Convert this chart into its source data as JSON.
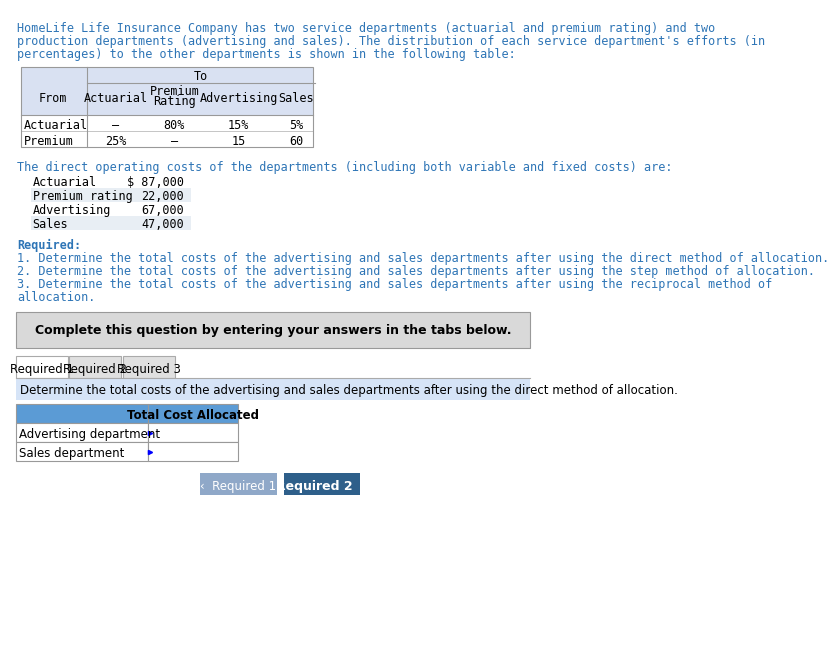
{
  "intro_lines": [
    "HomeLife Life Insurance Company has two service departments (actuarial and premium rating) and two",
    "production departments (advertising and sales). The distribution of each service department's efforts (in",
    "percentages) to the other departments is shown in the following table:"
  ],
  "table1_rows": [
    [
      "Actuarial",
      "–",
      "80%",
      "15%",
      "5%"
    ],
    [
      "Premium",
      "25%",
      "–",
      "15",
      "60"
    ]
  ],
  "costs_intro": "The direct operating costs of the departments (including both variable and fixed costs) are:",
  "costs_rows": [
    [
      "Actuarial",
      "$ 87,000"
    ],
    [
      "Premium rating",
      "22,000"
    ],
    [
      "Advertising",
      "67,000"
    ],
    [
      "Sales",
      "47,000"
    ]
  ],
  "required_label": "Required:",
  "required_items": [
    "1. Determine the total costs of the advertising and sales departments after using the direct method of allocation.",
    "2. Determine the total costs of the advertising and sales departments after using the step method of allocation.",
    "3. Determine the total costs of the advertising and sales departments after using the reciprocal method of",
    "allocation."
  ],
  "complete_text": "Complete this question by entering your answers in the tabs below.",
  "tab_labels": [
    "Required 1",
    "Required 2",
    "Required 3"
  ],
  "active_tab": 0,
  "tab_instruction": "Determine the total costs of the advertising and sales departments after using the direct method of allocation.",
  "small_table_header": "Total Cost Allocated",
  "small_table_rows": [
    "Advertising department",
    "Sales department"
  ],
  "nav_left_text": "‹  Required 1",
  "nav_right_text": "Required 2  ›",
  "color_text_blue": "#2E75B6",
  "color_header_bg": "#D9E1F2",
  "color_tab_active_bg": "#FFFFFF",
  "color_tab_inactive_bg": "#E0E0E0",
  "color_instruction_bg": "#D6E4F7",
  "color_small_table_header_bg": "#5B9BD5",
  "color_complete_bg": "#D9D9D9",
  "color_nav_left_bg": "#8FA8C8",
  "color_nav_right_bg": "#2E5F8A",
  "color_grid_line": "#999999",
  "color_tab_line": "#AAAAAA",
  "costs_row_colors": [
    "#FFFFFF",
    "#E8EEF4",
    "#FFFFFF",
    "#E8EEF4"
  ]
}
